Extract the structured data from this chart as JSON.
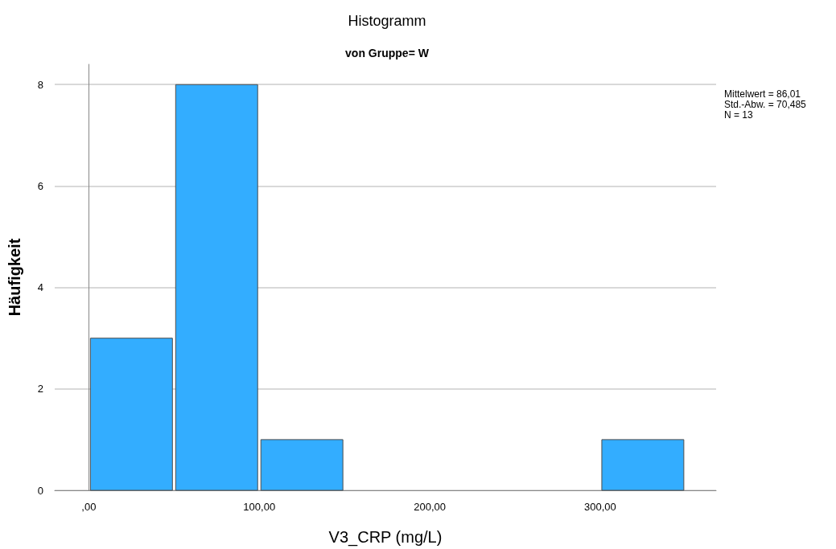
{
  "chart_data": {
    "type": "histogram",
    "title": "Histogramm",
    "subtitle": "von Gruppe= W",
    "xlabel": "V3_CRP (mg/L)",
    "ylabel": "Häufigkeit",
    "bins": [
      0,
      50,
      100,
      150,
      200,
      250,
      300,
      350
    ],
    "values": [
      3,
      8,
      1,
      0,
      0,
      0,
      1
    ],
    "color": "#33adff",
    "xlim": [
      -20,
      368
    ],
    "xticks": [
      {
        "value": 0,
        "label": ",00"
      },
      {
        "value": 100,
        "label": "100,00"
      },
      {
        "value": 200,
        "label": "200,00"
      },
      {
        "value": 300,
        "label": "300,00"
      }
    ],
    "ylim": [
      0,
      8.4
    ],
    "yticks": [
      0,
      2,
      4,
      6,
      8
    ],
    "grid": "y",
    "annotations": [
      "Mittelwert = 86,01",
      "Std.-Abw. = 70,485",
      "N = 13"
    ]
  }
}
